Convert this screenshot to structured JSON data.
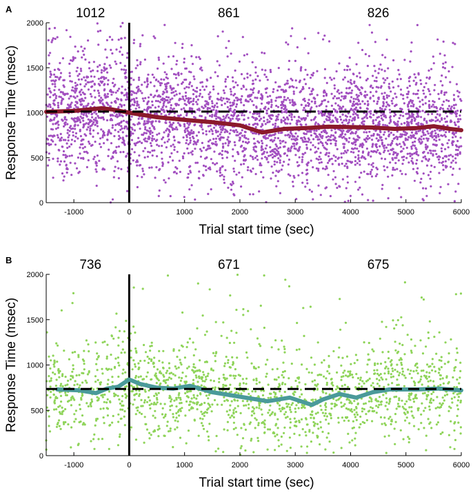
{
  "chart_data": [
    {
      "type": "scatter",
      "panel_label": "A",
      "xlabel": "Trial start time (sec)",
      "ylabel": "Response Time (msec)",
      "xlim": [
        -1500,
        6000
      ],
      "ylim": [
        0,
        2000
      ],
      "xticks": [
        -1000,
        0,
        1000,
        2000,
        3000,
        4000,
        5000,
        6000
      ],
      "yticks": [
        0,
        500,
        1000,
        1500,
        2000
      ],
      "grid": false,
      "annotations": [
        {
          "x": -700,
          "text": "1012"
        },
        {
          "x": 1800,
          "text": "861"
        },
        {
          "x": 4500,
          "text": "826"
        }
      ],
      "vertical_line_x": 0,
      "baseline": {
        "value": 1012,
        "style": "dashed",
        "color": "#000000"
      },
      "scatter": {
        "name": "Trials",
        "color": "#a24fc0",
        "n_points": 3600,
        "note": "dense cloud of individual trial response times"
      },
      "trend": {
        "name": "Moving average",
        "color": "#8b1a2b",
        "x": [
          -1500,
          -1000,
          -500,
          -300,
          0,
          500,
          1000,
          1500,
          2000,
          2400,
          2800,
          3200,
          3600,
          4000,
          4400,
          4800,
          5200,
          5500,
          5800,
          6000
        ],
        "y": [
          1010,
          1020,
          1050,
          1035,
          1000,
          950,
          920,
          895,
          860,
          780,
          820,
          830,
          845,
          840,
          835,
          820,
          830,
          850,
          820,
          805
        ]
      }
    },
    {
      "type": "scatter",
      "panel_label": "B",
      "xlabel": "Trial start time (sec)",
      "ylabel": "Response Time (msec)",
      "xlim": [
        -1500,
        6000
      ],
      "ylim": [
        0,
        2000
      ],
      "xticks": [
        -1000,
        0,
        1000,
        2000,
        3000,
        4000,
        5000,
        6000
      ],
      "yticks": [
        0,
        500,
        1000,
        1500,
        2000
      ],
      "grid": false,
      "annotations": [
        {
          "x": -700,
          "text": "736"
        },
        {
          "x": 1800,
          "text": "671"
        },
        {
          "x": 4500,
          "text": "675"
        }
      ],
      "vertical_line_x": 0,
      "baseline": {
        "value": 736,
        "style": "dashed",
        "color": "#000000"
      },
      "scatter": {
        "name": "Trials",
        "color": "#8fd45a",
        "n_points": 1700,
        "note": "sparser cloud of individual trial response times"
      },
      "trend": {
        "name": "Moving average",
        "color": "#4a9a9a",
        "x": [
          -1300,
          -900,
          -600,
          -400,
          -200,
          0,
          200,
          500,
          800,
          1100,
          1500,
          2000,
          2500,
          2900,
          3300,
          3500,
          3800,
          4100,
          4400,
          4700,
          5200,
          5600,
          6000
        ],
        "y": [
          730,
          720,
          690,
          740,
          760,
          840,
          790,
          750,
          740,
          770,
          700,
          650,
          600,
          640,
          560,
          620,
          680,
          640,
          700,
          730,
          730,
          740,
          720
        ]
      }
    }
  ]
}
